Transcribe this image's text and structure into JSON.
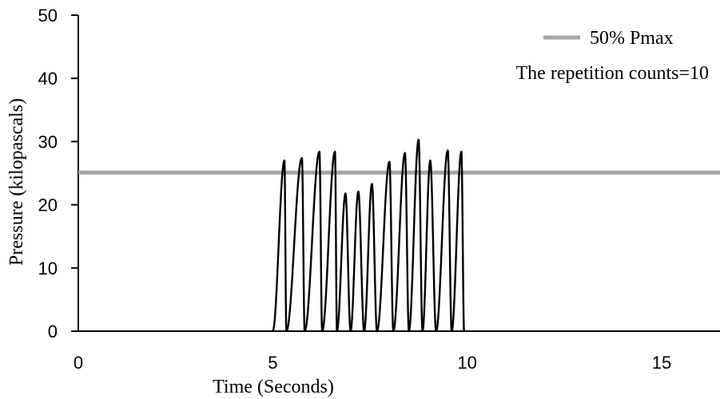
{
  "chart_data": {
    "type": "line",
    "title": "",
    "xlabel": "Time (Seconds)",
    "ylabel": "Pressure (kilopascals)",
    "xlim": [
      0,
      16.5
    ],
    "ylim": [
      0,
      50
    ],
    "x_ticks": [
      0,
      5,
      10,
      15
    ],
    "y_ticks": [
      0,
      10,
      20,
      30,
      40,
      50
    ],
    "grid": false,
    "legend": {
      "placement": "top-right",
      "entries": [
        {
          "label": "50% Pmax",
          "color": "#a6a6a6"
        }
      ],
      "note": "The repetition counts=10"
    },
    "reference_lines": [
      {
        "name": "50% Pmax",
        "y": 25.1,
        "color": "#a6a6a6"
      }
    ],
    "series": [
      {
        "color": "#000000",
        "cycles": [
          {
            "start": 5.0,
            "peak_t": 5.3,
            "end": 5.35,
            "peak": 27.0
          },
          {
            "start": 5.35,
            "peak_t": 5.75,
            "end": 5.82,
            "peak": 27.4
          },
          {
            "start": 5.82,
            "peak_t": 6.2,
            "end": 6.27,
            "peak": 28.4
          },
          {
            "start": 6.27,
            "peak_t": 6.6,
            "end": 6.65,
            "peak": 28.4
          },
          {
            "start": 6.65,
            "peak_t": 6.87,
            "end": 7.0,
            "peak": 21.8
          },
          {
            "start": 7.0,
            "peak_t": 7.2,
            "end": 7.35,
            "peak": 22.1
          },
          {
            "start": 7.35,
            "peak_t": 7.55,
            "end": 7.68,
            "peak": 23.3
          },
          {
            "start": 7.68,
            "peak_t": 8.0,
            "end": 8.1,
            "peak": 26.8
          },
          {
            "start": 8.1,
            "peak_t": 8.4,
            "end": 8.5,
            "peak": 28.2
          },
          {
            "start": 8.5,
            "peak_t": 8.75,
            "end": 8.85,
            "peak": 30.3
          },
          {
            "start": 8.85,
            "peak_t": 9.05,
            "end": 9.2,
            "peak": 27.0
          },
          {
            "start": 9.2,
            "peak_t": 9.5,
            "end": 9.6,
            "peak": 28.6
          },
          {
            "start": 9.6,
            "peak_t": 9.85,
            "end": 9.92,
            "peak": 28.4
          },
          {
            "start": 9.92,
            "peak_t": 9.93,
            "end": 9.93,
            "peak": 0
          }
        ]
      }
    ]
  }
}
